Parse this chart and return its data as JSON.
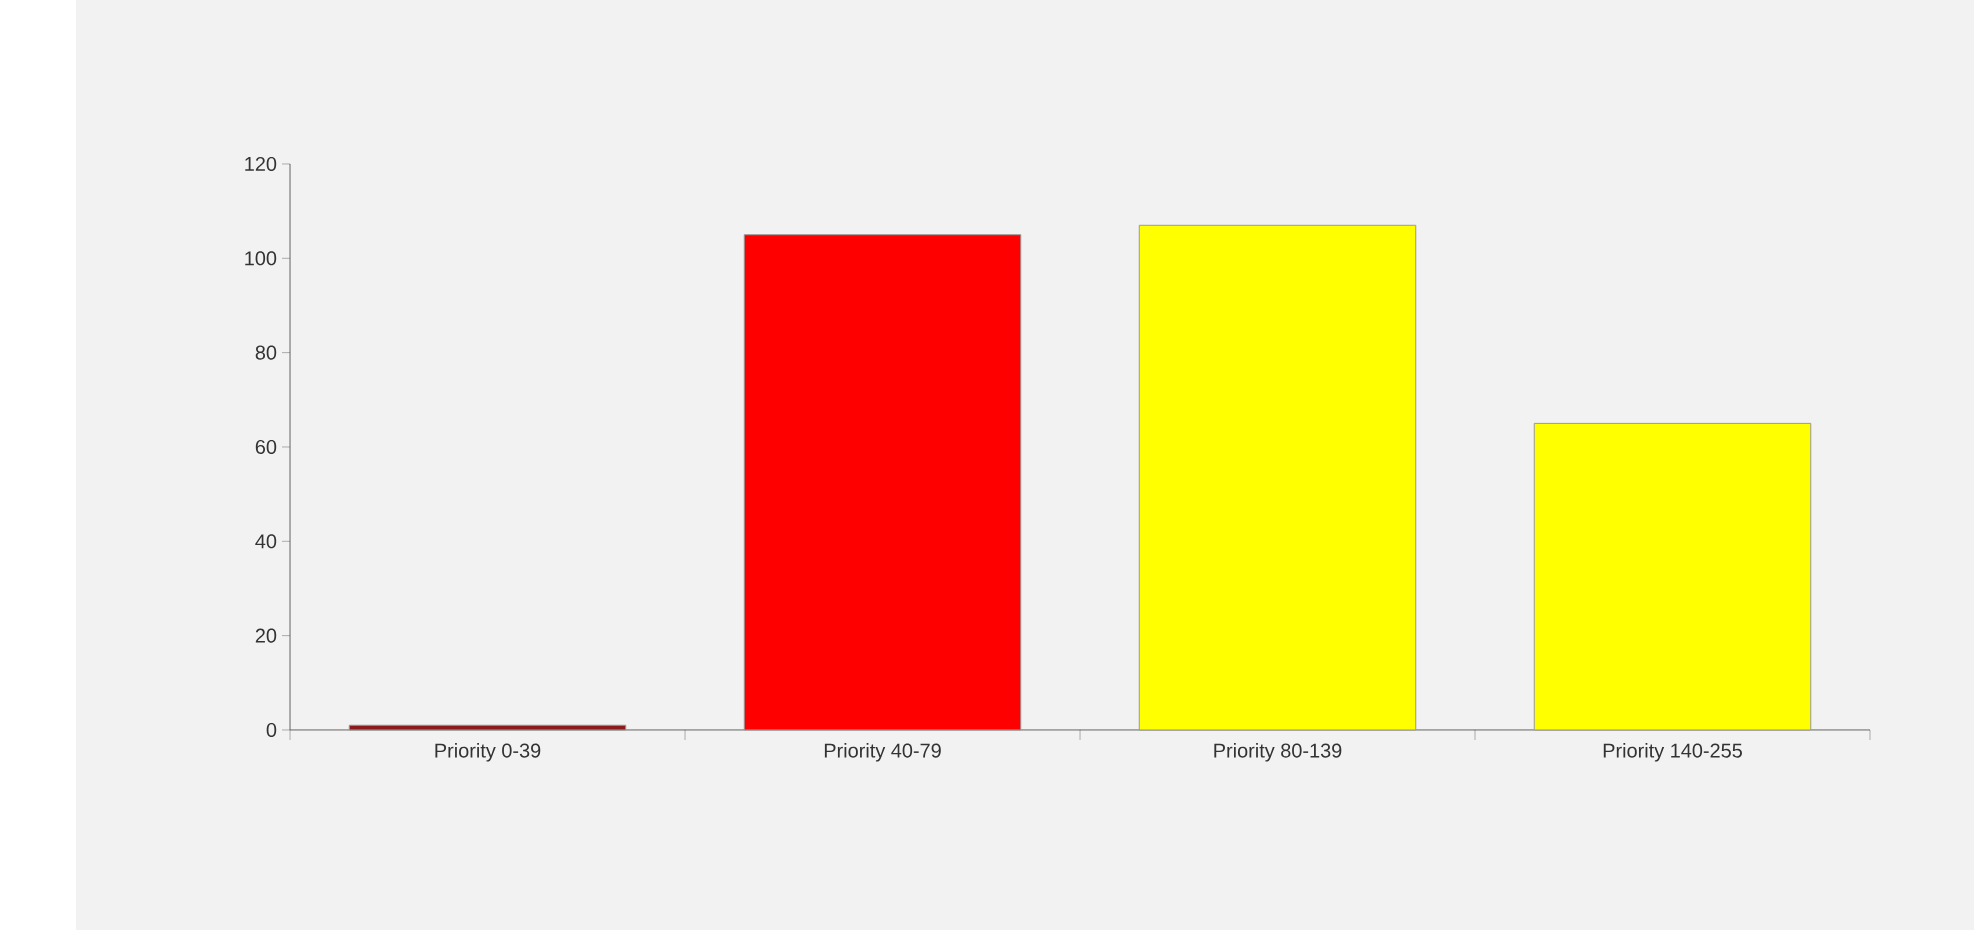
{
  "chart_data": {
    "type": "bar",
    "categories": [
      "Priority 0-39",
      "Priority 40-79",
      "Priority 80-139",
      "Priority 140-255"
    ],
    "values": [
      1,
      105,
      107,
      65
    ],
    "colors": [
      "#8b1a1a",
      "#ff0000",
      "#ffff00",
      "#ffff00"
    ],
    "ylim": [
      0,
      120
    ],
    "yticks": [
      0,
      20,
      40,
      60,
      80,
      100,
      120
    ]
  }
}
